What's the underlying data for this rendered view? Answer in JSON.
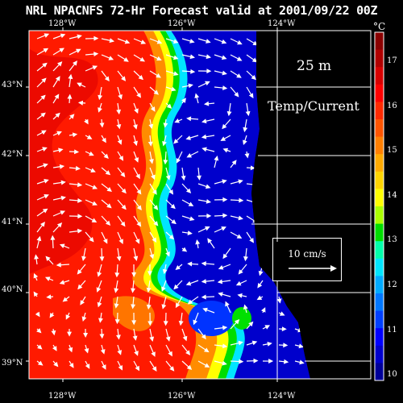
{
  "title": "NRL NPACNFS 72-Hr Forecast valid at 2001/09/22 00Z",
  "depth_label": "25 m",
  "variable_label": "Temp/Current",
  "reference_vector_label": "10 cm/s",
  "colorbar": {
    "unit": "°C",
    "ticks": [
      "17",
      "16",
      "15",
      "14",
      "13",
      "12",
      "11",
      "10"
    ],
    "colors": [
      "#8a0000",
      "#b00000",
      "#d80000",
      "#ff0000",
      "#ff2a00",
      "#ff5500",
      "#ff7f00",
      "#ffaa00",
      "#ffd400",
      "#ffff00",
      "#aaff00",
      "#00dd00",
      "#00ffaa",
      "#00e5ff",
      "#00aaff",
      "#0077ff",
      "#0040ff",
      "#0000ff",
      "#0000cc",
      "#000099"
    ]
  },
  "map": {
    "lon_top": [
      "128°W",
      "126°W",
      "124°W"
    ],
    "lon_bottom": [
      "128°W",
      "126°W",
      "124°W"
    ],
    "lat": [
      "43°N",
      "42°N",
      "41°N",
      "40°N",
      "39°N"
    ]
  }
}
